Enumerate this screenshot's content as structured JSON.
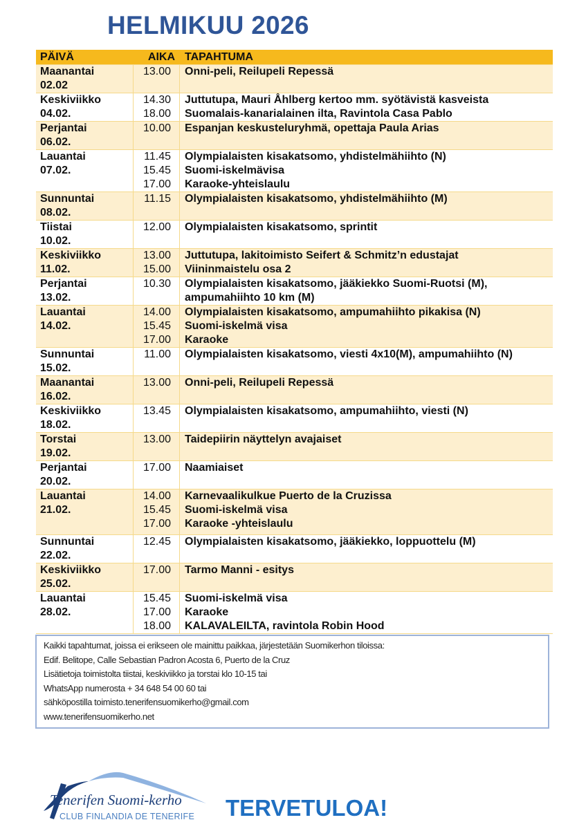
{
  "title": "HELMIKUU 2026",
  "colors": {
    "title": "#2f5597",
    "header": "#f6b91d",
    "alt_row": "#fdefcf",
    "welcome": "#1f6fc1"
  },
  "table": {
    "headers": {
      "day": "PÄIVÄ",
      "time": "AIKA",
      "event": "TAPAHTUMA"
    },
    "rows": [
      {
        "day": [
          "Maanantai",
          "02.02"
        ],
        "times": [
          "13.00"
        ],
        "events": [
          "Onni-peli, Reilupeli Repessä"
        ]
      },
      {
        "day": [
          "Keskiviikko",
          "04.02."
        ],
        "times": [
          "14.30",
          "18.00"
        ],
        "events": [
          "Juttutupa, Mauri Åhlberg kertoo mm. syötävistä kasveista",
          "Suomalais-kanarialainen ilta, Ravintola Casa Pablo"
        ]
      },
      {
        "day": [
          "Perjantai",
          "06.02."
        ],
        "times": [
          "10.00"
        ],
        "events": [
          "Espanjan keskusteluryhmä, opettaja Paula Arias"
        ]
      },
      {
        "day": [
          "Lauantai",
          "07.02."
        ],
        "times": [
          "11.45",
          "15.45",
          "17.00"
        ],
        "events": [
          "Olympialaisten kisakatsomo, yhdistelmähiihto (N)",
          "Suomi-iskelmävisa",
          "Karaoke-yhteislaulu"
        ]
      },
      {
        "day": [
          "Sunnuntai",
          "08.02."
        ],
        "times": [
          "11.15"
        ],
        "events": [
          "Olympialaisten kisakatsomo, yhdistelmähiihto (M)"
        ]
      },
      {
        "day": [
          "Tiistai",
          "10.02."
        ],
        "times": [
          "12.00"
        ],
        "events": [
          "Olympialaisten kisakatsomo, sprintit"
        ]
      },
      {
        "day": [
          "Keskiviikko",
          "11.02."
        ],
        "times": [
          "13.00",
          "15.00"
        ],
        "events": [
          "Juttutupa, lakitoimisto Seifert & Schmitz’n edustajat",
          "Viininmaistelu osa 2"
        ]
      },
      {
        "day": [
          "Perjantai",
          "13.02."
        ],
        "times": [
          "10.30"
        ],
        "events": [
          "Olympialaisten kisakatsomo, jääkiekko Suomi-Ruotsi (M),",
          "ampumahiihto 10 km (M)"
        ]
      },
      {
        "day": [
          "Lauantai",
          "14.02."
        ],
        "times": [
          "14.00",
          "15.45",
          "17.00"
        ],
        "events": [
          "Olympialaisten kisakatsomo, ampumahiihto pikakisa (N)",
          "Suomi-iskelmä visa",
          "Karaoke"
        ]
      },
      {
        "day": [
          "Sunnuntai",
          "15.02."
        ],
        "times": [
          "11.00"
        ],
        "events": [
          "Olympialaisten kisakatsomo, viesti 4x10(M), ampumahiihto (N)"
        ]
      },
      {
        "day": [
          "Maanantai",
          "16.02."
        ],
        "times": [
          "13.00"
        ],
        "events": [
          "Onni-peli, Reilupeli Repessä"
        ]
      },
      {
        "day": [
          "Keskiviikko",
          "18.02."
        ],
        "times": [
          "13.45"
        ],
        "events": [
          "Olympialaisten kisakatsomo, ampumahiihto, viesti (N)"
        ]
      },
      {
        "day": [
          "Torstai",
          "19.02."
        ],
        "times": [
          "13.00"
        ],
        "events": [
          "Taidepiirin näyttelyn avajaiset"
        ]
      },
      {
        "day": [
          "Perjantai",
          "20.02."
        ],
        "times": [
          "17.00"
        ],
        "events": [
          "Naamiaiset"
        ]
      },
      {
        "day": [
          "Lauantai",
          "21.02."
        ],
        "times": [
          "14.00",
          "15.45",
          "17.00"
        ],
        "events": [
          "Karnevaalikulkue Puerto de la Cruzissa",
          "Suomi-iskelmä visa",
          "Karaoke -yhteislaulu"
        ]
      },
      {
        "day": [
          "Sunnuntai",
          "22.02."
        ],
        "times": [
          "12.45"
        ],
        "events": [
          "Olympialaisten kisakatsomo, jääkiekko, loppuottelu (M)"
        ]
      },
      {
        "day": [
          "Keskiviikko",
          "25.02."
        ],
        "times": [
          "17.00"
        ],
        "events": [
          "Tarmo Manni - esitys"
        ]
      },
      {
        "day": [
          "Lauantai",
          "28.02."
        ],
        "times": [
          "15.45",
          "17.00",
          "18.00"
        ],
        "events": [
          "Suomi-iskelmä visa",
          "Karaoke",
          "KALAVALEILTA, ravintola Robin Hood"
        ]
      }
    ]
  },
  "info": {
    "lines": [
      "Kaikki tapahtumat, joissa ei erikseen ole mainittu paikkaa, järjestetään Suomikerhon tiloissa:",
      "Edif. Belitope, Calle Sebastian Padron Acosta 6, Puerto de la Cruz",
      "Lisätietoja toimistolta tiistai, keskiviikko ja torstai klo 10-15 tai",
      "WhatsApp numerosta + 34 648 54 00 60 tai",
      "sähköpostilla toimisto.tenerifensuomikerho@gmail.com",
      "www.tenerifensuomikerho.net"
    ]
  },
  "logo": {
    "name": "Tenerifen Suomi-kerho",
    "subtitle": "CLUB FINLANDIA DE TENERIFE"
  },
  "welcome": "TERVETULOA!"
}
